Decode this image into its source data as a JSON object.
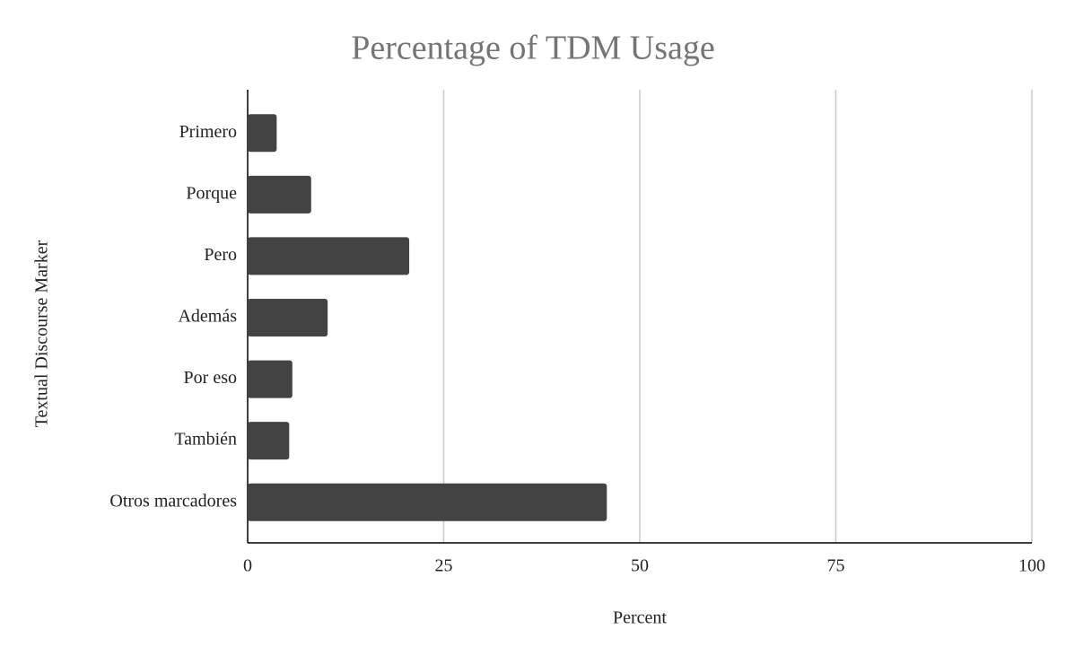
{
  "chart_data": {
    "type": "hbar",
    "title": "Percentage of TDM Usage",
    "x_label": "Percent",
    "y_label": "Textual Discourse Marker",
    "categories": [
      "Primero",
      "Porque",
      "Pero",
      "Además",
      "Por eso",
      "También",
      "Otros marcadores"
    ],
    "values": [
      3.7,
      8.1,
      20.6,
      10.2,
      5.7,
      5.3,
      45.8
    ],
    "color": "#434343",
    "xlim": [
      0,
      100
    ],
    "xticks": [
      0,
      25,
      50,
      75,
      100
    ],
    "grid": true
  }
}
